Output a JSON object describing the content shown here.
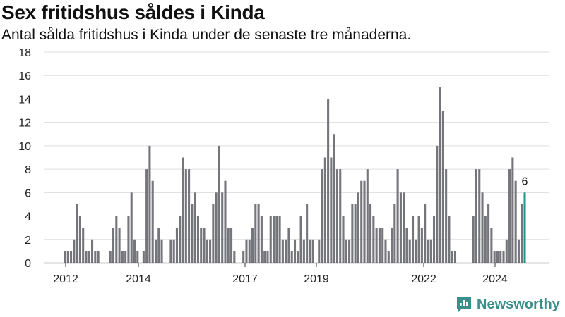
{
  "header": {
    "title": "Sex fritidshus såldes i Kinda",
    "subtitle": "Antal sålda fritidshus i Kinda under de senaste tre månaderna."
  },
  "brand": {
    "name": "Newsworthy",
    "icon": "newsworthy-logo-icon",
    "color": "#3a8f8a"
  },
  "colors": {
    "bar": "#75757c",
    "highlight": "#1f9a92",
    "grid": "#dddddd",
    "axis": "#333333"
  },
  "chart_data": {
    "type": "bar",
    "title": "Sex fritidshus såldes i Kinda",
    "subtitle": "Antal sålda fritidshus i Kinda under de senaste tre månaderna.",
    "xlabel": "",
    "ylabel": "",
    "ylim": [
      0,
      18
    ],
    "yticks": [
      0,
      2,
      4,
      6,
      8,
      10,
      12,
      14,
      16,
      18
    ],
    "xticks": [
      "2012",
      "2014",
      "2017",
      "2019",
      "2022",
      "2024"
    ],
    "grid": true,
    "last_value_label": "6",
    "values": [
      1,
      1,
      1,
      2,
      5,
      4,
      3,
      1,
      1,
      2,
      1,
      1,
      null,
      null,
      null,
      1,
      3,
      4,
      3,
      1,
      1,
      4,
      6,
      2,
      1,
      null,
      1,
      8,
      10,
      7,
      2,
      3,
      2,
      null,
      null,
      2,
      2,
      3,
      4,
      9,
      8,
      8,
      5,
      6,
      4,
      3,
      3,
      2,
      2,
      5,
      6,
      10,
      6,
      7,
      3,
      3,
      1,
      null,
      null,
      1,
      2,
      2,
      3,
      5,
      5,
      4,
      1,
      1,
      4,
      4,
      4,
      4,
      2,
      2,
      3,
      1,
      2,
      1,
      4,
      2,
      5,
      2,
      2,
      null,
      2,
      8,
      9,
      14,
      9,
      11,
      8,
      8,
      4,
      2,
      2,
      5,
      5,
      6,
      7,
      7,
      8,
      5,
      4,
      3,
      3,
      3,
      2,
      1,
      3,
      5,
      8,
      6,
      6,
      3,
      2,
      4,
      2,
      4,
      3,
      5,
      2,
      2,
      4,
      10,
      15,
      13,
      8,
      4,
      1,
      1,
      null,
      null,
      null,
      null,
      null,
      4,
      8,
      8,
      6,
      4,
      5,
      3,
      1,
      1,
      1,
      1,
      2,
      8,
      9,
      7,
      2,
      5,
      6
    ]
  }
}
